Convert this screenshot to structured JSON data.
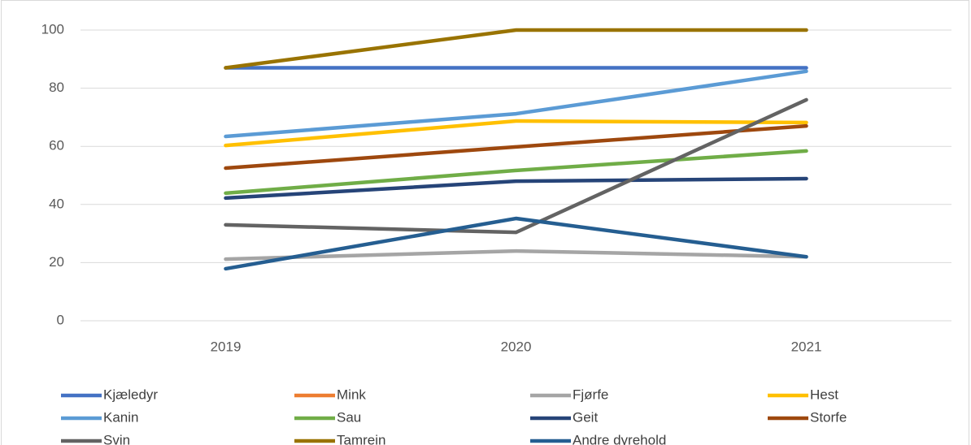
{
  "chart_data": {
    "type": "line",
    "categories": [
      "2019",
      "2020",
      "2021"
    ],
    "ylim": [
      0,
      100
    ],
    "yticks": [
      0,
      20,
      40,
      60,
      80,
      100
    ],
    "grid": true,
    "legend": "bottom",
    "series": [
      {
        "name": "Kjæledyr",
        "color": "#4472c4",
        "values": [
          87,
          87,
          87
        ]
      },
      {
        "name": "Mink",
        "color": "#ed7d31",
        "values": [
          null,
          null,
          null
        ]
      },
      {
        "name": "Fjørfe",
        "color": "#a5a5a5",
        "values": [
          21.2,
          24,
          22
        ]
      },
      {
        "name": "Hest",
        "color": "#ffc000",
        "values": [
          60.3,
          68.7,
          68.2
        ]
      },
      {
        "name": "Kanin",
        "color": "#5b9bd5",
        "values": [
          63.4,
          71.2,
          85.8
        ]
      },
      {
        "name": "Sau",
        "color": "#70ad47",
        "values": [
          43.9,
          51.7,
          58.4
        ]
      },
      {
        "name": "Geit",
        "color": "#264478",
        "values": [
          42.2,
          48,
          48.9
        ]
      },
      {
        "name": "Storfe",
        "color": "#9e480e",
        "values": [
          52.5,
          59.8,
          67
        ]
      },
      {
        "name": "Svin",
        "color": "#636363",
        "values": [
          33,
          30.4,
          76
        ]
      },
      {
        "name": "Tamrein",
        "color": "#997300",
        "values": [
          87,
          100,
          100
        ]
      },
      {
        "name": "Andre dyrehold",
        "color": "#255e91",
        "values": [
          17.9,
          35.2,
          22
        ]
      }
    ]
  }
}
